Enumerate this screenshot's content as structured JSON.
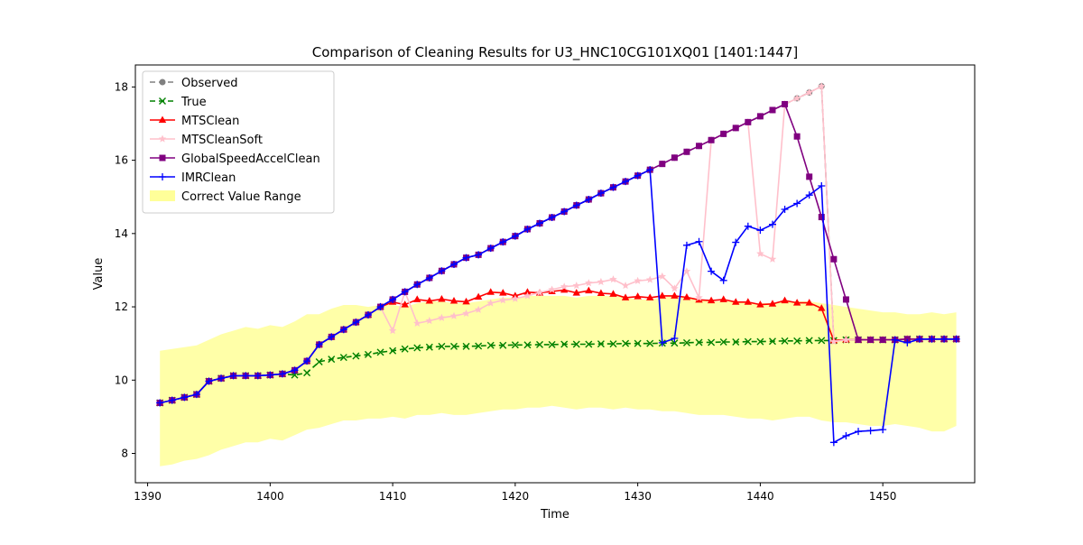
{
  "chart_data": {
    "type": "line",
    "title": "Comparison of Cleaning Results for U3_HNC10CG101XQ01 [1401:1447]",
    "xlabel": "Time",
    "ylabel": "Value",
    "xlim": [
      1389,
      1457.5
    ],
    "ylim": [
      7.2,
      18.6
    ],
    "xticks": [
      1390,
      1400,
      1410,
      1420,
      1430,
      1440,
      1450
    ],
    "yticks": [
      8,
      10,
      12,
      14,
      16,
      18
    ],
    "grid": false,
    "legend_position": "top-left",
    "x": [
      1391,
      1392,
      1393,
      1394,
      1395,
      1396,
      1397,
      1398,
      1399,
      1400,
      1401,
      1402,
      1403,
      1404,
      1405,
      1406,
      1407,
      1408,
      1409,
      1410,
      1411,
      1412,
      1413,
      1414,
      1415,
      1416,
      1417,
      1418,
      1419,
      1420,
      1421,
      1422,
      1423,
      1424,
      1425,
      1426,
      1427,
      1428,
      1429,
      1430,
      1431,
      1432,
      1433,
      1434,
      1435,
      1436,
      1437,
      1438,
      1439,
      1440,
      1441,
      1442,
      1443,
      1444,
      1445,
      1446,
      1447,
      1448,
      1449,
      1450,
      1451,
      1452,
      1453,
      1454,
      1455,
      1456
    ],
    "range": {
      "name": "Correct Value Range",
      "color": "#ffff99",
      "upper": [
        10.8,
        10.85,
        10.9,
        10.95,
        11.1,
        11.25,
        11.35,
        11.45,
        11.4,
        11.5,
        11.45,
        11.6,
        11.8,
        11.8,
        11.95,
        12.05,
        12.05,
        12.0,
        12.05,
        12.05,
        12.0,
        12.1,
        12.15,
        12.15,
        12.1,
        12.1,
        12.15,
        12.2,
        12.25,
        12.25,
        12.3,
        12.3,
        12.3,
        12.3,
        12.25,
        12.3,
        12.3,
        12.3,
        12.25,
        12.2,
        12.2,
        12.25,
        12.3,
        12.25,
        12.2,
        12.15,
        12.15,
        12.15,
        12.1,
        12.1,
        12.1,
        12.15,
        12.15,
        12.15,
        12.1,
        12.05,
        12.0,
        11.95,
        11.9,
        11.85,
        11.85,
        11.8,
        11.8,
        11.85,
        11.8,
        11.85
      ],
      "lower": [
        7.65,
        7.7,
        7.8,
        7.85,
        7.95,
        8.1,
        8.2,
        8.3,
        8.3,
        8.4,
        8.35,
        8.5,
        8.65,
        8.7,
        8.8,
        8.9,
        8.9,
        8.95,
        8.95,
        9.0,
        8.95,
        9.05,
        9.05,
        9.1,
        9.05,
        9.05,
        9.1,
        9.15,
        9.2,
        9.2,
        9.25,
        9.25,
        9.3,
        9.25,
        9.2,
        9.25,
        9.25,
        9.2,
        9.25,
        9.2,
        9.2,
        9.15,
        9.15,
        9.1,
        9.05,
        9.05,
        9.05,
        9.0,
        8.95,
        8.95,
        8.9,
        8.95,
        9.0,
        9.0,
        8.9,
        8.85,
        8.85,
        8.8,
        8.75,
        8.75,
        8.8,
        8.75,
        8.7,
        8.6,
        8.6,
        8.75
      ]
    },
    "series": [
      {
        "name": "Observed",
        "color": "#808080",
        "marker": "circle",
        "dash": "6,4",
        "values": [
          9.38,
          9.45,
          9.53,
          9.61,
          9.97,
          10.05,
          10.12,
          10.12,
          10.12,
          10.14,
          10.17,
          10.27,
          10.52,
          10.97,
          11.18,
          11.38,
          11.58,
          11.78,
          12.0,
          12.2,
          12.41,
          12.61,
          12.79,
          12.98,
          13.16,
          13.34,
          13.42,
          13.6,
          13.77,
          13.93,
          14.12,
          14.28,
          14.44,
          14.6,
          14.77,
          14.93,
          15.1,
          15.26,
          15.42,
          15.58,
          15.74,
          15.9,
          16.07,
          16.23,
          16.39,
          16.55,
          16.72,
          16.88,
          17.04,
          17.2,
          17.37,
          17.53,
          17.69,
          17.85,
          18.02,
          11.08,
          11.1,
          11.1,
          11.1,
          11.1,
          11.1,
          11.12,
          11.12,
          11.12,
          11.12,
          11.12
        ]
      },
      {
        "name": "True",
        "color": "#008000",
        "marker": "x",
        "dash": "6,4",
        "values": [
          9.38,
          9.45,
          9.53,
          9.61,
          9.97,
          10.05,
          10.12,
          10.12,
          10.12,
          10.14,
          10.17,
          10.14,
          10.2,
          10.5,
          10.57,
          10.62,
          10.66,
          10.7,
          10.76,
          10.8,
          10.85,
          10.88,
          10.9,
          10.92,
          10.92,
          10.92,
          10.93,
          10.95,
          10.95,
          10.96,
          10.96,
          10.97,
          10.97,
          10.98,
          10.98,
          10.98,
          10.99,
          10.99,
          11.0,
          11.0,
          11.0,
          11.01,
          11.01,
          11.02,
          11.03,
          11.03,
          11.04,
          11.04,
          11.05,
          11.05,
          11.06,
          11.07,
          11.07,
          11.08,
          11.08,
          11.08,
          11.1,
          11.1,
          11.1,
          11.1,
          11.1,
          11.12,
          11.12,
          11.12,
          11.12,
          11.12
        ]
      },
      {
        "name": "MTSClean",
        "color": "#ff0000",
        "marker": "triangle",
        "dash": "",
        "values": [
          9.38,
          9.45,
          9.53,
          9.61,
          9.97,
          10.05,
          10.12,
          10.12,
          10.12,
          10.14,
          10.17,
          10.27,
          10.52,
          10.97,
          11.18,
          11.38,
          11.58,
          11.78,
          12.0,
          12.13,
          12.06,
          12.2,
          12.16,
          12.21,
          12.16,
          12.14,
          12.27,
          12.4,
          12.38,
          12.3,
          12.4,
          12.38,
          12.42,
          12.46,
          12.38,
          12.44,
          12.37,
          12.35,
          12.25,
          12.28,
          12.25,
          12.3,
          12.3,
          12.26,
          12.19,
          12.17,
          12.2,
          12.13,
          12.13,
          12.06,
          12.08,
          12.17,
          12.11,
          12.11,
          11.96,
          11.08,
          11.1,
          11.1,
          11.1,
          11.1,
          11.1,
          11.12,
          11.12,
          11.12,
          11.12,
          11.12
        ]
      },
      {
        "name": "MTSCleanSoft",
        "color": "#ffc0cb",
        "marker": "star",
        "dash": "",
        "values": [
          9.38,
          9.45,
          9.53,
          9.61,
          9.97,
          10.05,
          10.12,
          10.12,
          10.12,
          10.14,
          10.17,
          10.27,
          10.52,
          10.97,
          11.18,
          11.38,
          11.58,
          11.78,
          12.0,
          11.35,
          12.41,
          11.55,
          11.62,
          11.7,
          11.75,
          11.82,
          11.92,
          12.1,
          12.18,
          12.22,
          12.3,
          12.39,
          12.47,
          12.55,
          12.58,
          12.65,
          12.68,
          12.75,
          12.58,
          12.71,
          12.74,
          12.83,
          12.5,
          12.97,
          12.25,
          16.55,
          16.72,
          16.88,
          17.04,
          13.45,
          13.3,
          17.53,
          17.69,
          17.85,
          18.02,
          11.05,
          11.1,
          11.1,
          11.1,
          11.1,
          11.1,
          11.12,
          11.12,
          11.12,
          11.12,
          11.12
        ]
      },
      {
        "name": "GlobalSpeedAccelClean",
        "color": "#800080",
        "marker": "square",
        "dash": "",
        "values": [
          9.38,
          9.45,
          9.53,
          9.61,
          9.97,
          10.05,
          10.12,
          10.12,
          10.12,
          10.14,
          10.17,
          10.27,
          10.52,
          10.97,
          11.18,
          11.38,
          11.58,
          11.78,
          12.0,
          12.2,
          12.41,
          12.61,
          12.79,
          12.98,
          13.16,
          13.34,
          13.42,
          13.6,
          13.77,
          13.93,
          14.12,
          14.28,
          14.44,
          14.6,
          14.77,
          14.93,
          15.1,
          15.26,
          15.42,
          15.58,
          15.74,
          15.9,
          16.07,
          16.23,
          16.39,
          16.55,
          16.72,
          16.88,
          17.04,
          17.2,
          17.37,
          17.53,
          16.65,
          15.55,
          14.45,
          13.3,
          12.2,
          11.1,
          11.1,
          11.1,
          11.1,
          11.12,
          11.12,
          11.12,
          11.12,
          11.12
        ]
      },
      {
        "name": "IMRClean",
        "color": "#0000ff",
        "marker": "plus",
        "dash": "",
        "values": [
          9.38,
          9.45,
          9.53,
          9.61,
          9.97,
          10.05,
          10.12,
          10.12,
          10.12,
          10.14,
          10.17,
          10.27,
          10.52,
          10.97,
          11.18,
          11.38,
          11.58,
          11.78,
          12.0,
          12.2,
          12.41,
          12.61,
          12.79,
          12.98,
          13.16,
          13.34,
          13.42,
          13.6,
          13.77,
          13.93,
          14.12,
          14.28,
          14.44,
          14.6,
          14.77,
          14.93,
          15.1,
          15.26,
          15.42,
          15.58,
          15.74,
          11.02,
          11.14,
          13.68,
          13.78,
          12.97,
          12.72,
          13.76,
          14.2,
          14.09,
          14.25,
          14.66,
          14.82,
          15.05,
          15.3,
          8.3,
          8.48,
          8.6,
          8.62,
          8.65,
          11.1,
          11.02,
          11.12,
          11.12,
          11.12,
          11.12
        ]
      }
    ]
  }
}
